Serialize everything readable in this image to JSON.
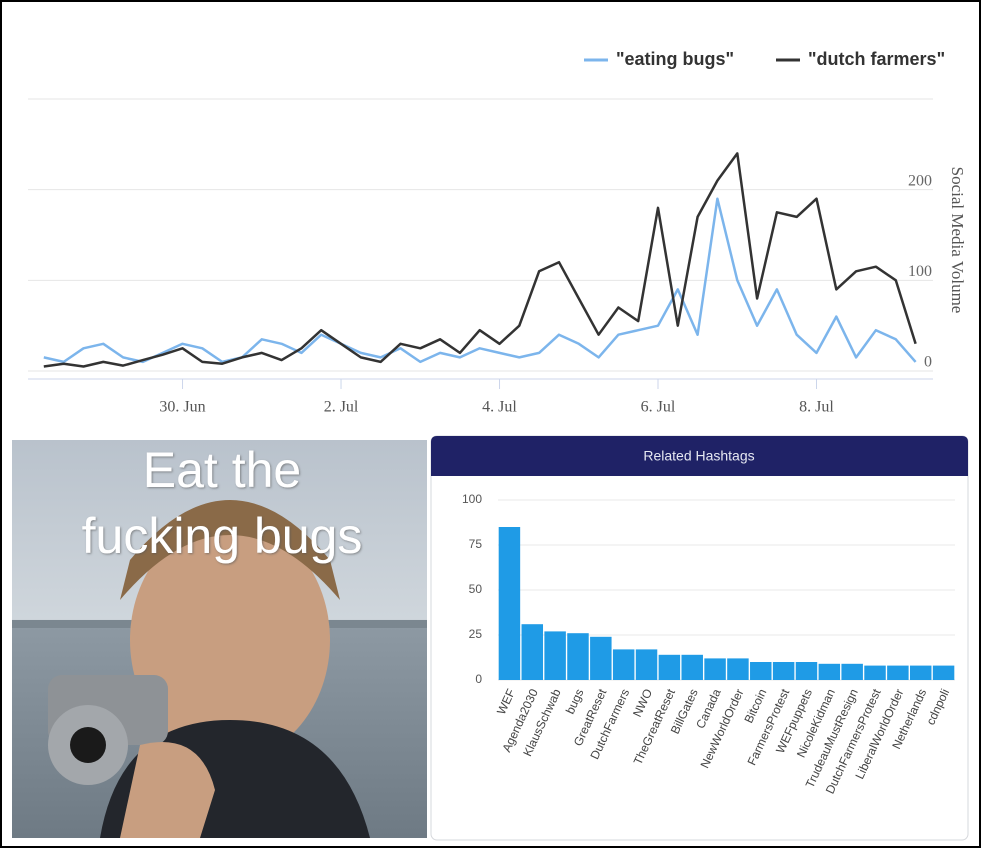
{
  "chart_data": [
    {
      "type": "line",
      "x": [
        0.25,
        0.5,
        0.75,
        1,
        1.25,
        1.5,
        1.75,
        2,
        2.25,
        2.5,
        2.75,
        3,
        3.25,
        3.5,
        3.75,
        4,
        4.25,
        4.5,
        4.75,
        5,
        5.25,
        5.5,
        5.75,
        6,
        6.25,
        6.5,
        6.75,
        7,
        7.25,
        7.5,
        7.75,
        8,
        8.25,
        8.5,
        8.75,
        9,
        9.25,
        9.5,
        9.75,
        10,
        10.25,
        10.5,
        10.75,
        11,
        11.25
      ],
      "series": [
        {
          "name": "\"eating bugs\"",
          "color": "#7cb5ec",
          "values": [
            15,
            10,
            25,
            30,
            15,
            10,
            20,
            30,
            25,
            10,
            15,
            35,
            30,
            20,
            40,
            30,
            20,
            15,
            25,
            10,
            20,
            15,
            25,
            20,
            15,
            20,
            40,
            30,
            15,
            40,
            45,
            50,
            90,
            40,
            190,
            100,
            50,
            90,
            40,
            20,
            60,
            15,
            45,
            35,
            10
          ]
        },
        {
          "name": "\"dutch farmers\"",
          "color": "#333333",
          "values": [
            5,
            8,
            5,
            10,
            6,
            12,
            18,
            25,
            10,
            8,
            15,
            20,
            12,
            25,
            45,
            30,
            15,
            10,
            30,
            25,
            35,
            20,
            45,
            30,
            50,
            110,
            120,
            80,
            40,
            70,
            55,
            180,
            50,
            170,
            210,
            240,
            80,
            175,
            170,
            190,
            90,
            110,
            115,
            100,
            30
          ]
        }
      ],
      "xlim": [
        0.05,
        11.47
      ],
      "xticks": [
        {
          "value": 2,
          "label": "30. Jun"
        },
        {
          "value": 4,
          "label": "2. Jul"
        },
        {
          "value": 6,
          "label": "4. Jul"
        },
        {
          "value": 8,
          "label": "6. Jul"
        },
        {
          "value": 10,
          "label": "8. Jul"
        }
      ],
      "ylim": [
        0,
        300
      ],
      "yticks": [
        0,
        100,
        200,
        300
      ],
      "y_label": "Social Media Volume",
      "grid": true,
      "legend": "top-right"
    },
    {
      "type": "bar",
      "title": "Related Hashtags",
      "categories": [
        "WEF",
        "Agenda2030",
        "KlausSchwab",
        "bugs",
        "GreatReset",
        "DutchFarmers",
        "NWO",
        "TheGreatReset",
        "BillGates",
        "Canada",
        "NewWorldOrder",
        "Bitcoin",
        "FarmersProtest",
        "WEFpuppets",
        "NicoleKidman",
        "TrudeauMustResign",
        "DutchFarmersProtest",
        "LiberalWorldOrder",
        "Netherlands",
        "cdnpoli"
      ],
      "values": [
        85,
        31,
        27,
        26,
        24,
        17,
        17,
        14,
        14,
        12,
        12,
        10,
        10,
        10,
        9,
        9,
        8,
        8,
        8,
        8
      ],
      "color": "#1f9be6",
      "ylim": [
        0,
        100
      ],
      "yticks": [
        0,
        25,
        50,
        75,
        100
      ],
      "grid": true
    }
  ],
  "meme": {
    "caption_lines": [
      "Eat the",
      "fucking bugs"
    ]
  }
}
